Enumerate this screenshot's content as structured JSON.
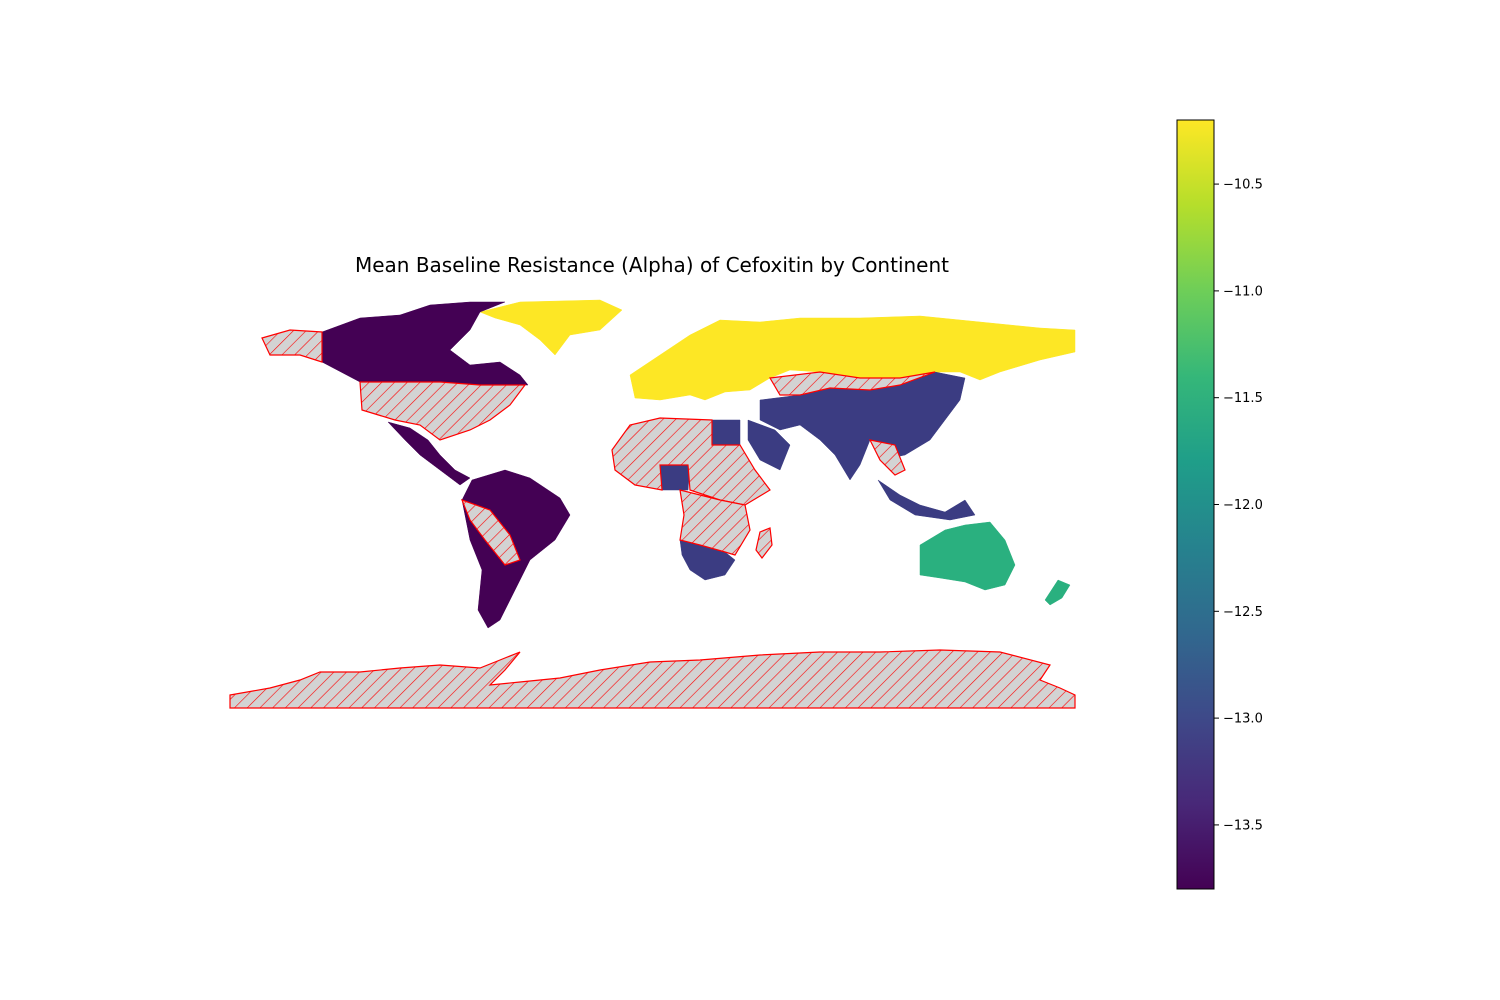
{
  "chart_data": {
    "type": "choropleth",
    "title": "Mean Baseline Resistance (Alpha) of Cefoxitin by Continent",
    "colormap": "viridis",
    "colorbar": {
      "vmin": -13.8,
      "vmax": -10.2,
      "ticks": [
        -10.5,
        -11.0,
        -11.5,
        -12.0,
        -12.5,
        -13.0,
        -13.5
      ],
      "tick_labels": [
        "−10.5",
        "−11.0",
        "−11.5",
        "−12.0",
        "−12.5",
        "−13.0",
        "−13.5"
      ],
      "orientation": "vertical",
      "placement": "right"
    },
    "regions": [
      {
        "continent": "Europe",
        "value": -10.2,
        "color": "#fde725"
      },
      {
        "continent": "Oceania",
        "value": -11.6,
        "color": "#2ab07f"
      },
      {
        "continent": "Asia",
        "value": -13.2,
        "color": "#3b3c82"
      },
      {
        "continent": "Africa",
        "value": -13.2,
        "color": "#3b3c82"
      },
      {
        "continent": "North America",
        "value": -13.8,
        "color": "#440154"
      },
      {
        "continent": "South America",
        "value": -13.8,
        "color": "#440154"
      }
    ],
    "missing_style": {
      "fill": "#d3d3d3",
      "edge": "#ff0000",
      "hatch": "///"
    },
    "grid": false
  }
}
